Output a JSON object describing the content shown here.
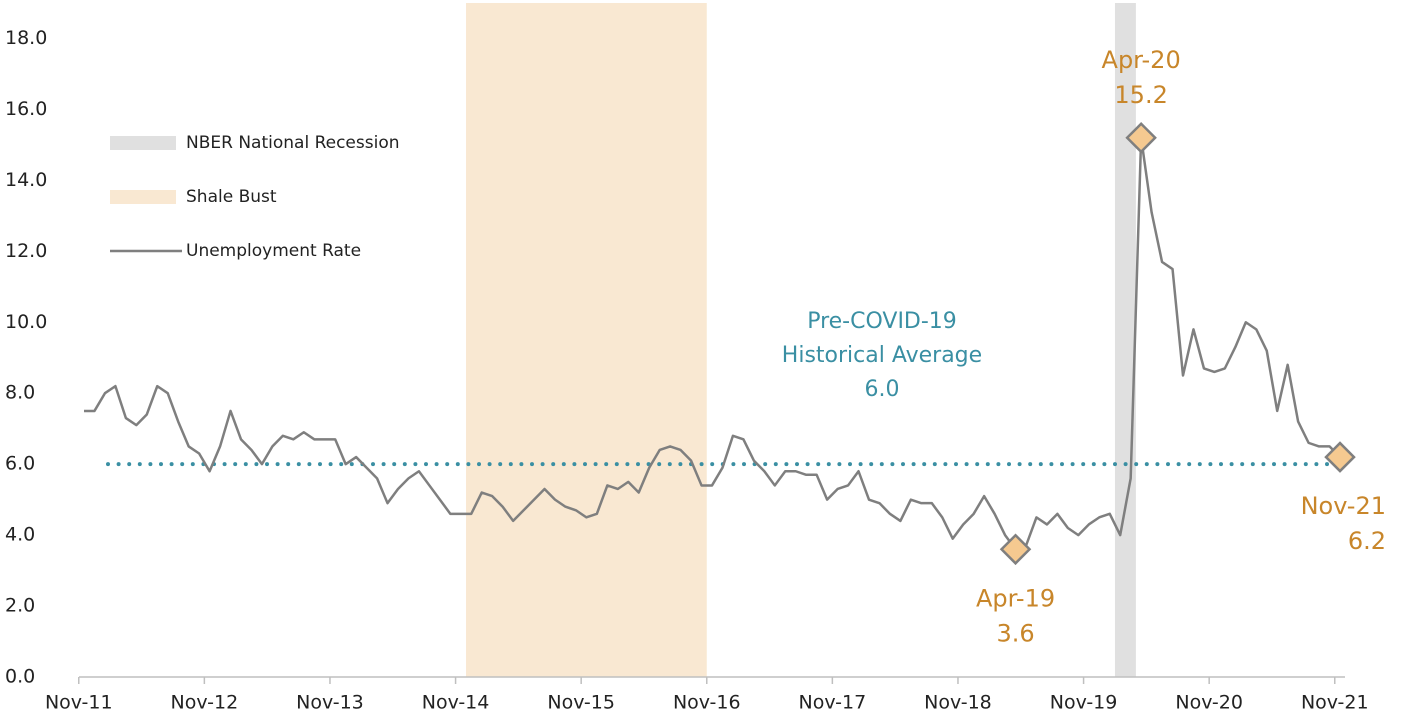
{
  "chart_data": {
    "type": "line",
    "x": [
      "Nov-11",
      "Dec-11",
      "Jan-12",
      "Feb-12",
      "Mar-12",
      "Apr-12",
      "May-12",
      "Jun-12",
      "Jul-12",
      "Aug-12",
      "Sep-12",
      "Oct-12",
      "Nov-12",
      "Dec-12",
      "Jan-13",
      "Feb-13",
      "Mar-13",
      "Apr-13",
      "May-13",
      "Jun-13",
      "Jul-13",
      "Aug-13",
      "Sep-13",
      "Oct-13",
      "Nov-13",
      "Dec-13",
      "Jan-14",
      "Feb-14",
      "Mar-14",
      "Apr-14",
      "May-14",
      "Jun-14",
      "Jul-14",
      "Aug-14",
      "Sep-14",
      "Oct-14",
      "Nov-14",
      "Dec-14",
      "Jan-15",
      "Feb-15",
      "Mar-15",
      "Apr-15",
      "May-15",
      "Jun-15",
      "Jul-15",
      "Aug-15",
      "Sep-15",
      "Oct-15",
      "Nov-15",
      "Dec-15",
      "Jan-16",
      "Feb-16",
      "Mar-16",
      "Apr-16",
      "May-16",
      "Jun-16",
      "Jul-16",
      "Aug-16",
      "Sep-16",
      "Oct-16",
      "Nov-16",
      "Dec-16",
      "Jan-17",
      "Feb-17",
      "Mar-17",
      "Apr-17",
      "May-17",
      "Jun-17",
      "Jul-17",
      "Aug-17",
      "Sep-17",
      "Oct-17",
      "Nov-17",
      "Dec-17",
      "Jan-18",
      "Feb-18",
      "Mar-18",
      "Apr-18",
      "May-18",
      "Jun-18",
      "Jul-18",
      "Aug-18",
      "Sep-18",
      "Oct-18",
      "Nov-18",
      "Dec-18",
      "Jan-19",
      "Feb-19",
      "Mar-19",
      "Apr-19",
      "May-19",
      "Jun-19",
      "Jul-19",
      "Aug-19",
      "Sep-19",
      "Oct-19",
      "Nov-19",
      "Dec-19",
      "Jan-20",
      "Feb-20",
      "Mar-20",
      "Apr-20",
      "May-20",
      "Jun-20",
      "Jul-20",
      "Aug-20",
      "Sep-20",
      "Oct-20",
      "Nov-20",
      "Dec-20",
      "Jan-21",
      "Feb-21",
      "Mar-21",
      "Apr-21",
      "May-21",
      "Jun-21",
      "Jul-21",
      "Aug-21",
      "Sep-21",
      "Oct-21",
      "Nov-21"
    ],
    "series": [
      {
        "name": "Unemployment Rate",
        "color": "#7f7f7f",
        "values": [
          7.5,
          7.5,
          8.0,
          8.2,
          7.3,
          7.1,
          7.4,
          8.2,
          8.0,
          7.2,
          6.5,
          6.3,
          5.8,
          6.5,
          7.5,
          6.7,
          6.4,
          6.0,
          6.5,
          6.8,
          6.7,
          6.9,
          6.7,
          6.7,
          6.7,
          6.0,
          6.2,
          5.9,
          5.6,
          4.9,
          5.3,
          5.6,
          5.8,
          5.4,
          5.0,
          4.6,
          4.6,
          4.6,
          5.2,
          5.1,
          4.8,
          4.4,
          4.7,
          5.0,
          5.3,
          5.0,
          4.8,
          4.7,
          4.5,
          4.6,
          5.4,
          5.3,
          5.5,
          5.2,
          5.9,
          6.4,
          6.5,
          6.4,
          6.1,
          5.4,
          5.4,
          5.9,
          6.8,
          6.7,
          6.1,
          5.8,
          5.4,
          5.8,
          5.8,
          5.7,
          5.7,
          5.0,
          5.3,
          5.4,
          5.8,
          5.0,
          4.9,
          4.6,
          4.4,
          5.0,
          4.9,
          4.9,
          4.5,
          3.9,
          4.3,
          4.6,
          5.1,
          4.6,
          4.0,
          3.6,
          3.7,
          4.5,
          4.3,
          4.6,
          4.2,
          4.0,
          4.3,
          4.5,
          4.6,
          4.0,
          5.6,
          15.2,
          13.1,
          11.7,
          11.5,
          8.5,
          9.8,
          8.7,
          8.6,
          8.7,
          9.3,
          10.0,
          9.8,
          9.2,
          7.5,
          8.8,
          7.2,
          6.6,
          6.5,
          6.5,
          6.2
        ]
      }
    ],
    "shaded_regions": [
      {
        "name": "NBER National Recession",
        "start": "Feb-20",
        "end": "Mar-20",
        "color": "#e0e0e0"
      },
      {
        "name": "Shale Bust",
        "start": "Dec-14",
        "end": "Oct-16",
        "color": "#f9e8d2"
      }
    ],
    "highlight_points": [
      "Apr-19",
      "Apr-20",
      "Nov-21"
    ],
    "highlight_color": "#f5c990",
    "reference_line": {
      "value": 6,
      "value_label": "6.0",
      "label": [
        "Pre-COVID-19",
        "Historical Average"
      ],
      "color": "#3a8fa3"
    },
    "xticks": [
      "Nov-11",
      "Nov-12",
      "Nov-13",
      "Nov-14",
      "Nov-15",
      "Nov-16",
      "Nov-17",
      "Nov-18",
      "Nov-19",
      "Nov-20",
      "Nov-21"
    ],
    "ylim": [
      0,
      19
    ],
    "yticks": [
      {
        "value": 0,
        "label": "0.0"
      },
      {
        "value": 2,
        "label": "2.0"
      },
      {
        "value": 4,
        "label": "4.0"
      },
      {
        "value": 6,
        "label": "6.0"
      },
      {
        "value": 8,
        "label": "8.0"
      },
      {
        "value": 10,
        "label": "10.0"
      },
      {
        "value": 12,
        "label": "12.0"
      },
      {
        "value": 14,
        "label": "14.0"
      },
      {
        "value": 16,
        "label": "16.0"
      },
      {
        "value": 18,
        "label": "18.0"
      }
    ],
    "legend": "upper left"
  }
}
